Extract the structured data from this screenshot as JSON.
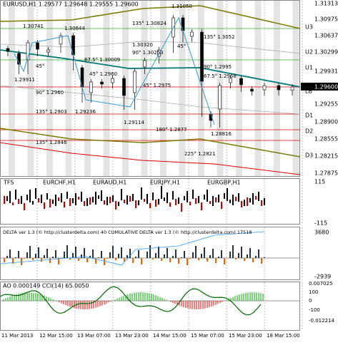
{
  "header": {
    "title": "EURUSD,H1  1.29577 1.29648 1.29555 1.29600"
  },
  "main": {
    "price_labels": [
      "1.31313",
      "1.30975",
      "1.30637",
      "1.30299",
      "1.29931",
      "1.29255",
      "1.28900",
      "1.28555",
      "1.28215",
      "1.27875"
    ],
    "current_price": "1.29600",
    "band_labels": [
      "U3",
      "U2",
      "U1",
      "LB",
      "D1",
      "D2",
      "D3"
    ],
    "annotations": [
      "1.30741",
      "1.30644",
      "1.31050",
      "135° 1.30824",
      "135° 1.3052",
      "1.30320",
      "90° 1.30253",
      "45°",
      "67.5° 1.30009",
      "45° 1.2960",
      "45° 1.2975",
      "90° 1.2960",
      "1.29911",
      "45°",
      "1.29236",
      "1.29114",
      "135° 1.2903",
      "135° 1.2846",
      "180° 1.2877",
      "225° 1.2821",
      "90° 1.2995",
      "67.5° 1.2968",
      "1.28816"
    ]
  },
  "tfs": {
    "title": "TFS",
    "symbols": [
      "EURCHF,H1",
      "EURAUD,H1",
      "EURJPY,H1",
      "EURGBP,H1"
    ],
    "axis": [
      "115",
      "-115"
    ]
  },
  "delta": {
    "title": "DELTA ver 1.3 (© http://clusterdelta.com) 40  CUMULATIVE DELTA ver 1.3 (© http://clusterdelta.com) 17518",
    "axis": [
      "3680",
      "-2939"
    ]
  },
  "ao": {
    "title": "AO 0.000149  CCI(14) 65.0050",
    "axis": [
      "0.007025",
      "100",
      "0",
      "-100",
      "-0.012214"
    ]
  },
  "time_axis": [
    "11 Mar 2013",
    "12 Mar 15:00",
    "13 Mar 07:00",
    "13 Mar 23:00",
    "14 Mar 15:00",
    "15 Mar 07:00",
    "15 Mar 23:00",
    "18 Mar 15:00"
  ]
}
